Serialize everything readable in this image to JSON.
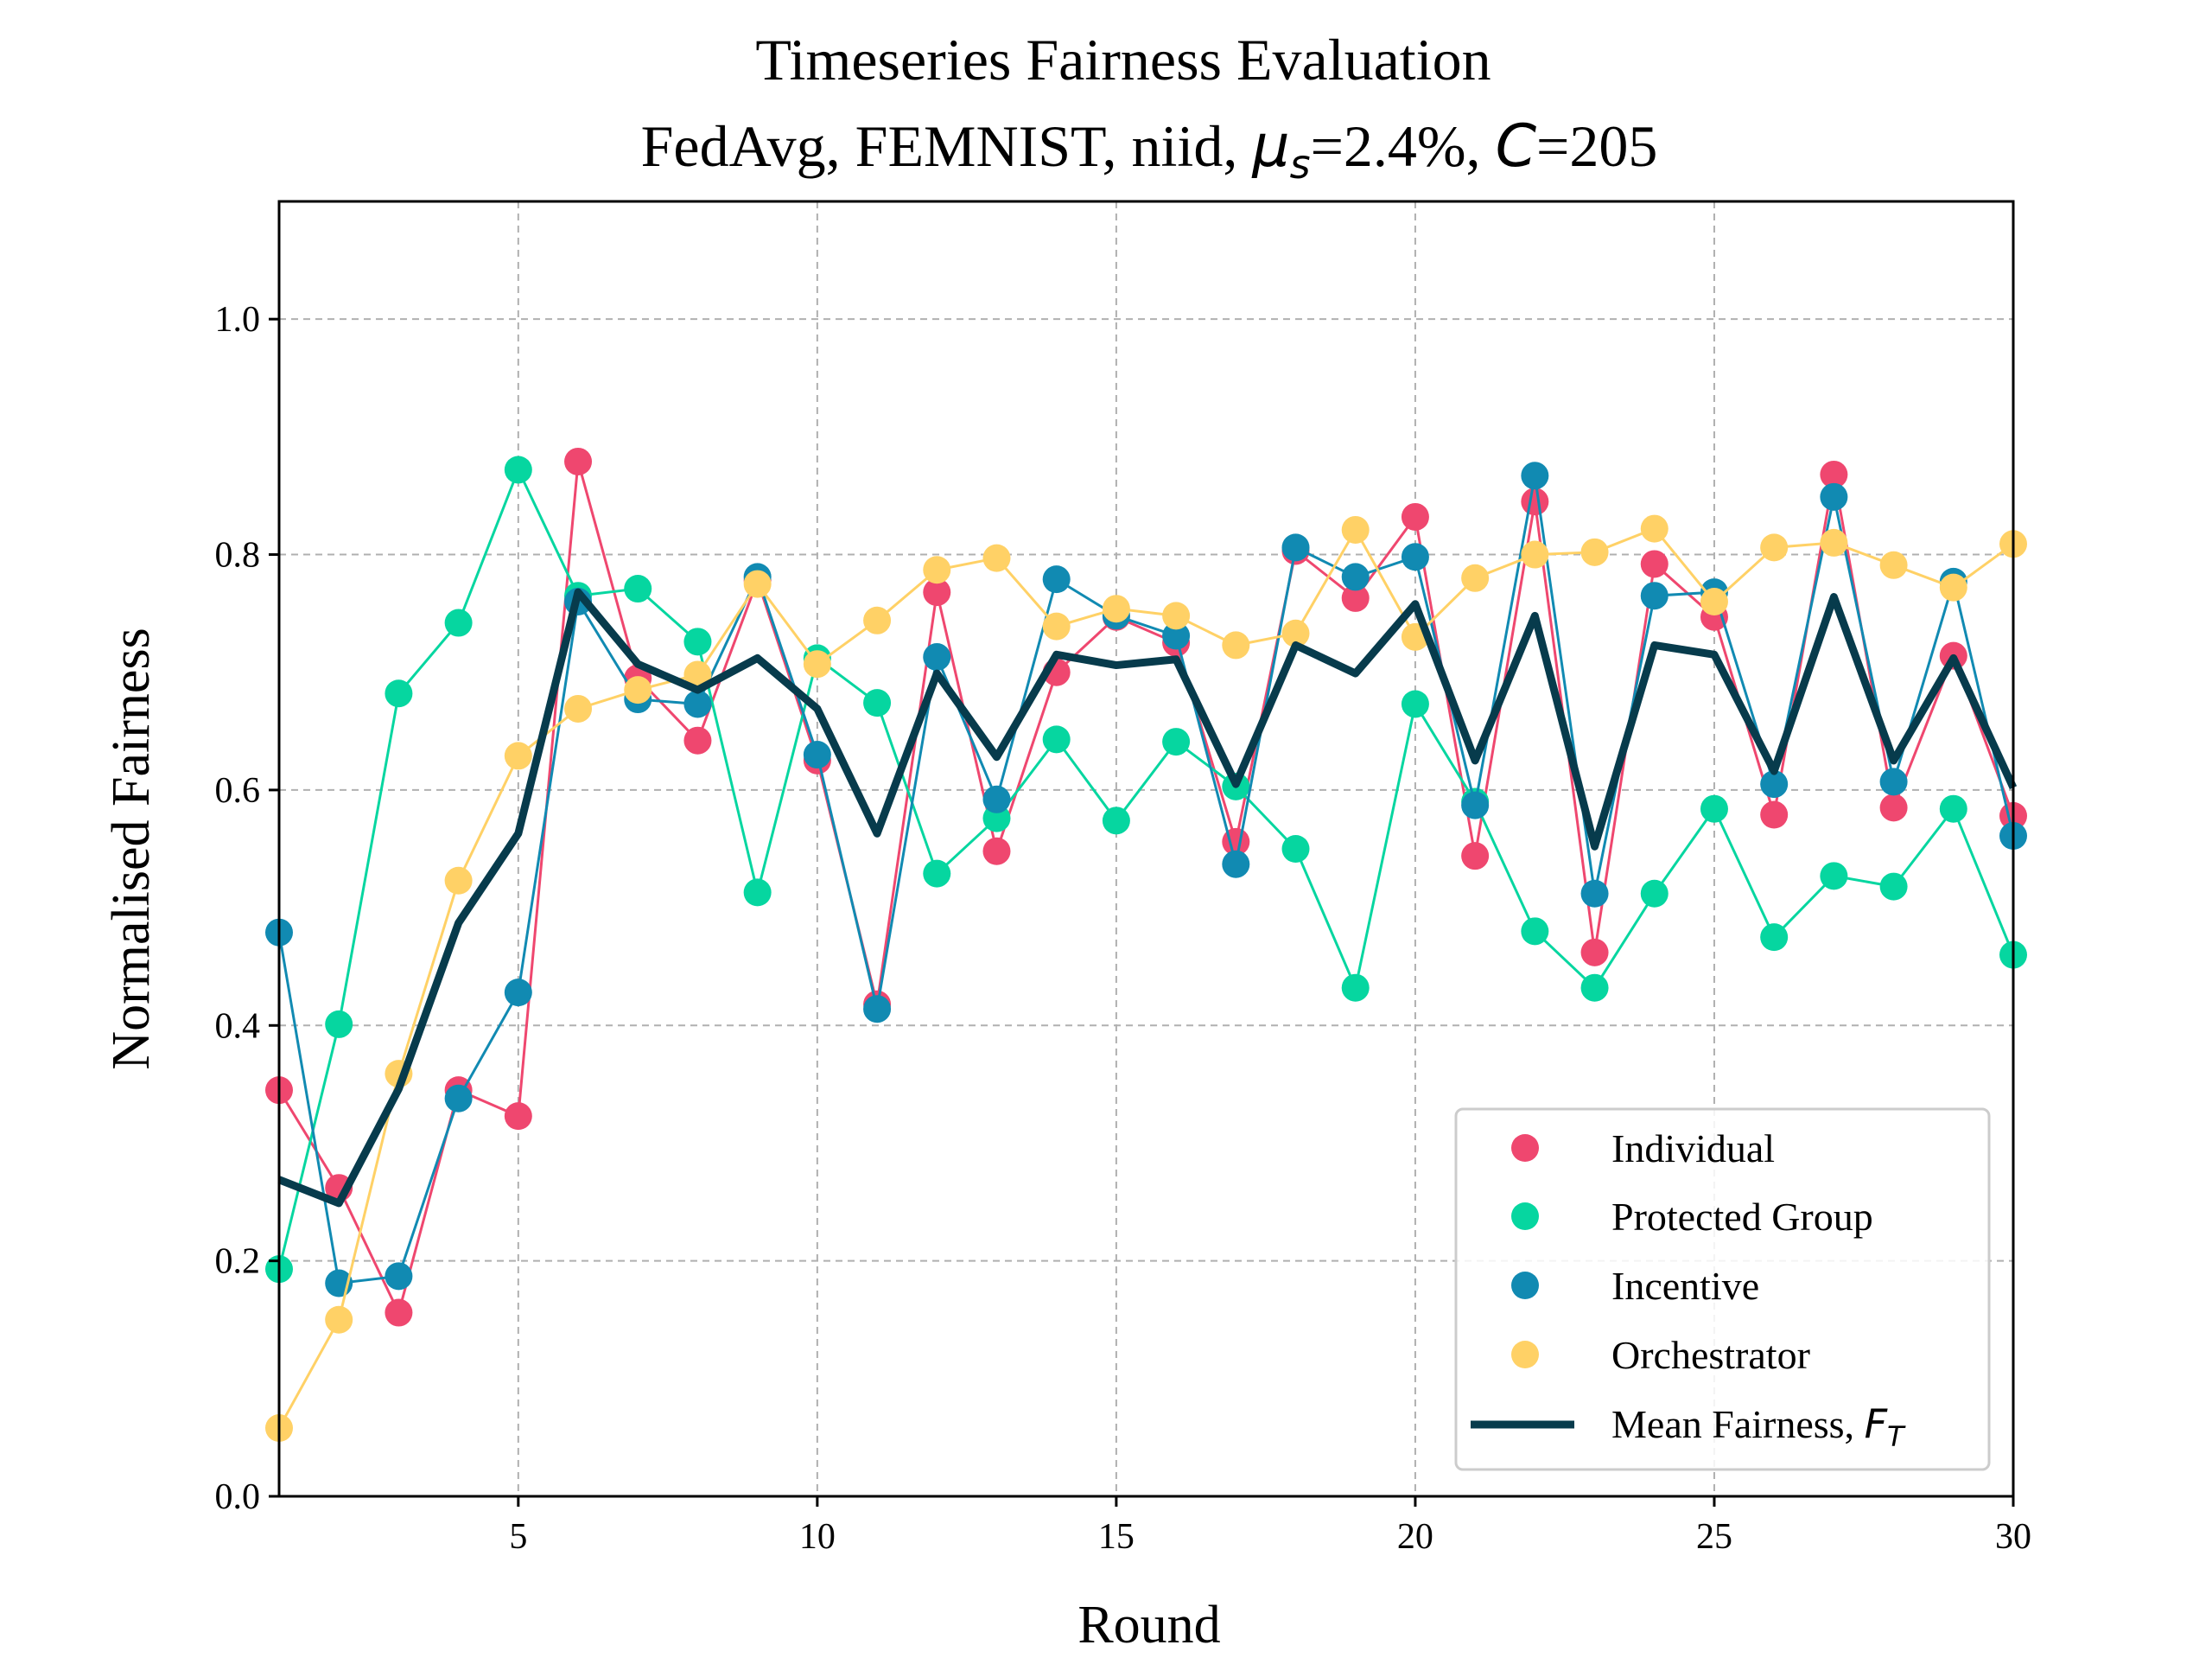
{
  "chart_data": {
    "type": "line",
    "title_line1": "Timeseries Fairness Evaluation",
    "title_line2_prefix": "FedAvg, FEMNIST, niid, ",
    "title_mu": "μ",
    "title_mu_sub": "s",
    "title_mu_value": "=2.4%, ",
    "title_c": "C",
    "title_c_value": "=205",
    "xlabel": "Round",
    "ylabel": "Normalised Fairness",
    "xlim": [
      1,
      30
    ],
    "ylim": [
      0,
      1.1
    ],
    "xticks": [
      5,
      10,
      15,
      20,
      25,
      30
    ],
    "yticks": [
      "0.0",
      "0.2",
      "0.4",
      "0.6",
      "0.8",
      "1.0"
    ],
    "grid": true,
    "legend_position": "lower-right",
    "legend_mean_label": "Mean Fairness, ",
    "legend_mean_symbol": "F",
    "legend_mean_sub": "T",
    "x": [
      1,
      2,
      3,
      4,
      5,
      6,
      7,
      8,
      9,
      10,
      11,
      12,
      13,
      14,
      15,
      16,
      17,
      18,
      19,
      20,
      21,
      22,
      23,
      24,
      25,
      26,
      27,
      28,
      29,
      30
    ],
    "series": [
      {
        "name": "Individual",
        "color": "#ef476f",
        "values": [
          0.345,
          0.262,
          0.156,
          0.345,
          0.323,
          0.879,
          0.695,
          0.642,
          0.778,
          0.625,
          0.418,
          0.768,
          0.548,
          0.7,
          0.747,
          0.725,
          0.556,
          0.803,
          0.763,
          0.832,
          0.544,
          0.845,
          0.462,
          0.792,
          0.747,
          0.579,
          0.868,
          0.585,
          0.714,
          0.578
        ]
      },
      {
        "name": "Protected Group",
        "color": "#06d6a0",
        "values": [
          0.193,
          0.401,
          0.682,
          0.742,
          0.872,
          0.765,
          0.771,
          0.726,
          0.513,
          0.712,
          0.674,
          0.529,
          0.576,
          0.643,
          0.574,
          0.641,
          0.603,
          0.55,
          0.432,
          0.673,
          0.59,
          0.48,
          0.432,
          0.512,
          0.584,
          0.475,
          0.527,
          0.518,
          0.584,
          0.46
        ]
      },
      {
        "name": "Incentive",
        "color": "#118ab2",
        "values": [
          0.479,
          0.181,
          0.187,
          0.338,
          0.428,
          0.76,
          0.677,
          0.673,
          0.781,
          0.63,
          0.414,
          0.713,
          0.592,
          0.779,
          0.748,
          0.731,
          0.537,
          0.806,
          0.781,
          0.798,
          0.587,
          0.867,
          0.512,
          0.765,
          0.768,
          0.605,
          0.849,
          0.607,
          0.777,
          0.561
        ]
      },
      {
        "name": "Orchestrator",
        "color": "#ffd166",
        "values": [
          0.058,
          0.15,
          0.359,
          0.523,
          0.629,
          0.669,
          0.685,
          0.698,
          0.775,
          0.707,
          0.744,
          0.787,
          0.797,
          0.739,
          0.754,
          0.748,
          0.723,
          0.733,
          0.821,
          0.73,
          0.78,
          0.8,
          0.802,
          0.822,
          0.76,
          0.806,
          0.81,
          0.791,
          0.772,
          0.809
        ]
      }
    ],
    "mean": {
      "name": "Mean Fairness",
      "color": "#073b4c",
      "values": [
        0.269,
        0.249,
        0.346,
        0.487,
        0.563,
        0.768,
        0.707,
        0.685,
        0.712,
        0.669,
        0.563,
        0.699,
        0.628,
        0.715,
        0.706,
        0.711,
        0.605,
        0.723,
        0.699,
        0.758,
        0.625,
        0.748,
        0.552,
        0.723,
        0.715,
        0.616,
        0.764,
        0.625,
        0.712,
        0.602
      ]
    }
  }
}
